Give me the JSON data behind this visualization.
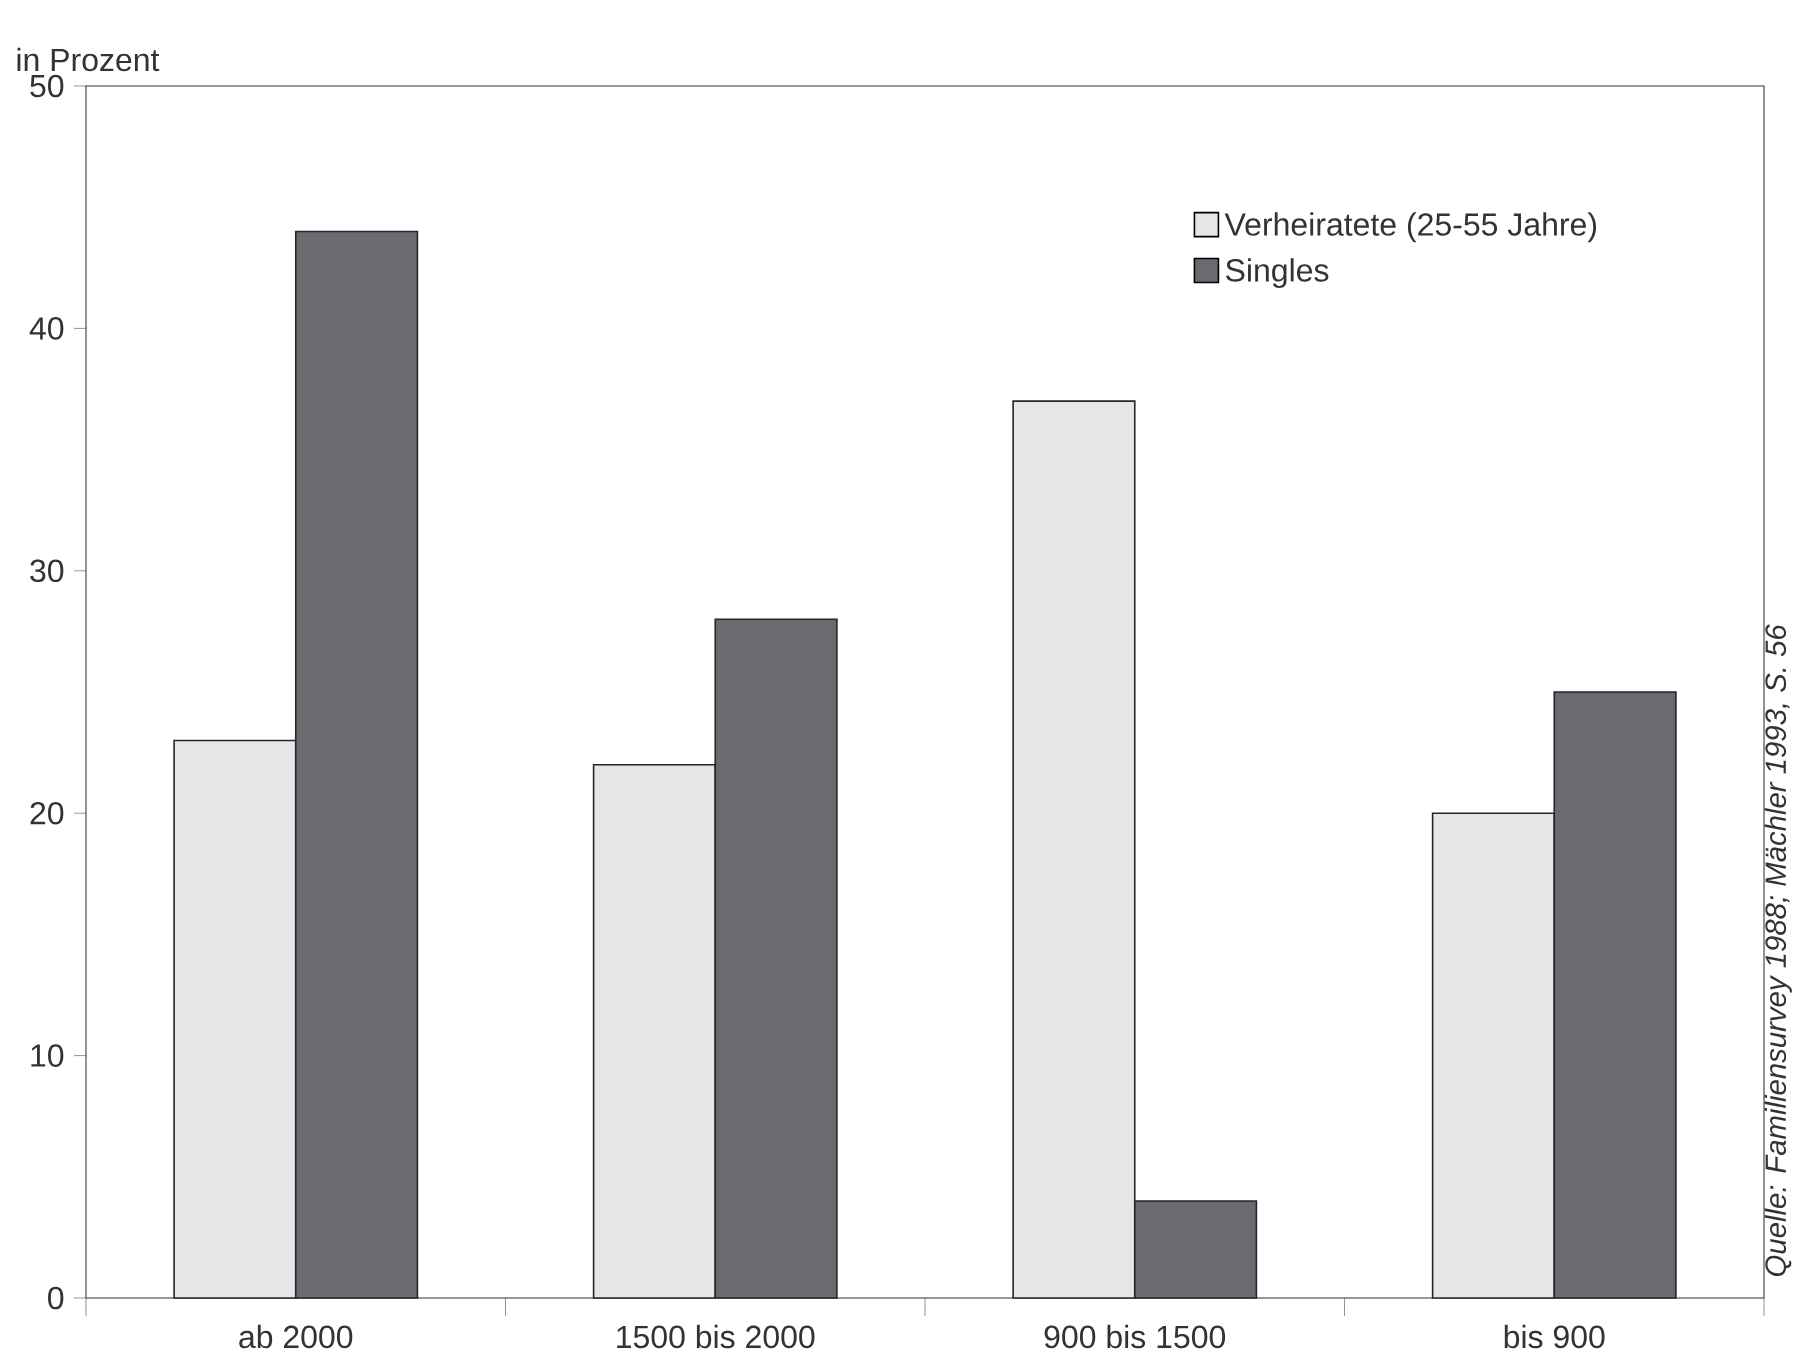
{
  "chart_data": {
    "type": "bar",
    "ylabel": "in Prozent",
    "categories": [
      "ab 2000",
      "1500 bis 2000",
      "900 bis 1500",
      "bis 900"
    ],
    "series": [
      {
        "name": "Verheiratete (25-55 Jahre)",
        "color": "#e5e6e8",
        "values": [
          23,
          22,
          37,
          20
        ]
      },
      {
        "name": "Singles",
        "color": "#6a6b70",
        "values": [
          44,
          28,
          4,
          25
        ]
      }
    ],
    "ylim": [
      0,
      50
    ],
    "yticks": [
      0,
      10,
      20,
      30,
      40,
      50
    ],
    "grid": false,
    "legend": "top right",
    "annotations": [
      "Quelle: Familiensurvey 1988; Mächler 1993, S. 56"
    ]
  }
}
